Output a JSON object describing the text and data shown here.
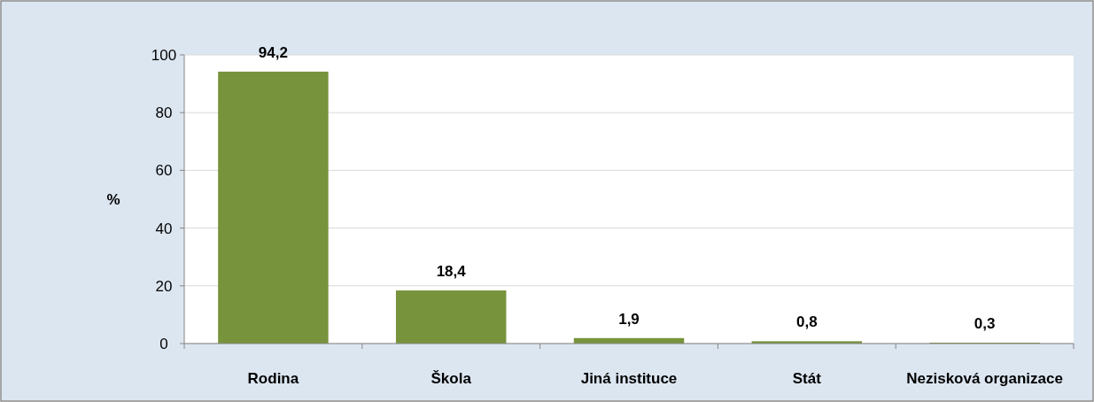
{
  "chart_data": {
    "type": "bar",
    "ylabel": "%",
    "categories": [
      "Rodina",
      "Škola",
      "Jiná instituce",
      "Stát",
      "Nezisková organizace"
    ],
    "values": [
      94.2,
      18.4,
      1.9,
      0.8,
      0.3
    ],
    "value_labels": [
      "94,2",
      "18,4",
      "1,9",
      "0,8",
      "0,3"
    ],
    "color": "#77933c",
    "ylim": [
      0,
      100
    ],
    "yticks": [
      0,
      20,
      40,
      60,
      80,
      100
    ],
    "grid": "y"
  }
}
